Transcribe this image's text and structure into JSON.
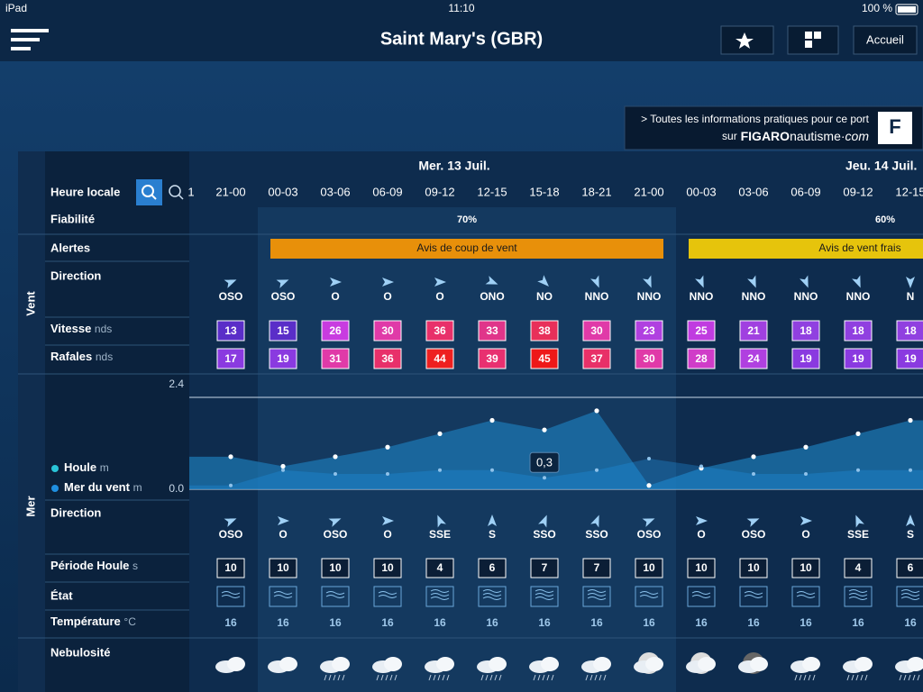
{
  "status_bar": {
    "device": "iPad",
    "time": "11:10",
    "battery": "100 %"
  },
  "header": {
    "title": "Saint Mary's (GBR)",
    "button": "Accueil"
  },
  "ad": {
    "line1": "> Toutes les informations pratiques pour ce port",
    "prefix": "sur",
    "brand": "FIGARO",
    "brand2": "nautisme",
    "brand3": "·com"
  },
  "days": [
    "Mer. 13 Juil.",
    "Jeu. 14 Juil."
  ],
  "labels": {
    "local_time": "Heure locale",
    "reliability": "Fiabilité",
    "alerts": "Alertes",
    "wind_group": "Vent",
    "wind_direction": "Direction",
    "speed": "Vitesse",
    "speed_unit": "nds",
    "gusts": "Rafales",
    "gusts_unit": "nds",
    "sea_group": "Mer",
    "swell": "Houle",
    "swell_unit": "m",
    "wind_sea": "Mer du vent",
    "wind_sea_unit": "m",
    "sea_direction": "Direction",
    "period": "Période Houle",
    "period_unit": "s",
    "state": "État",
    "temperature": "Température",
    "temperature_unit": "°C",
    "cloudiness": "Nebulosité"
  },
  "partial_time": "1",
  "times": [
    "21-00",
    "00-03",
    "03-06",
    "06-09",
    "09-12",
    "12-15",
    "15-18",
    "18-21",
    "21-00",
    "00-03",
    "03-06",
    "06-09",
    "09-12",
    "12-15"
  ],
  "reliability": [
    "70%",
    "60%"
  ],
  "alerts": [
    {
      "label": "Avis de coup de vent",
      "color": "#e8900a"
    },
    {
      "label": "Avis de vent frais",
      "color": "#e6c40c"
    }
  ],
  "wind": {
    "direction": [
      "OSO",
      "OSO",
      "O",
      "O",
      "O",
      "ONO",
      "NO",
      "NNO",
      "NNO",
      "NNO",
      "NNO",
      "NNO",
      "NNO",
      "N"
    ],
    "speed": {
      "values": [
        13,
        15,
        26,
        30,
        36,
        33,
        38,
        30,
        23,
        25,
        21,
        18,
        18,
        18
      ],
      "colors": [
        "#5a2ec8",
        "#5a2ec8",
        "#c83ce0",
        "#e03aa8",
        "#e8306a",
        "#e0358a",
        "#e8305a",
        "#e03aa8",
        "#b040e0",
        "#c03ce0",
        "#a040e0",
        "#9040e0",
        "#9040e0",
        "#9040e0"
      ]
    },
    "gusts": {
      "values": [
        17,
        19,
        31,
        36,
        44,
        39,
        45,
        37,
        30,
        28,
        24,
        19,
        19,
        19
      ],
      "colors": [
        "#8a3ae0",
        "#8a3ae0",
        "#e03aa8",
        "#e8306a",
        "#ee2020",
        "#e83070",
        "#ee1818",
        "#e83068",
        "#e03aa8",
        "#d03cc8",
        "#b040e0",
        "#8a3ae0",
        "#8a3ae0",
        "#8a3ae0"
      ]
    }
  },
  "chart_data": {
    "type": "area",
    "ylim": [
      0,
      2.4
    ],
    "yticks": [
      {
        "value": 0,
        "label": "0.0"
      },
      {
        "value": 2.4,
        "label": "2.4"
      }
    ],
    "series": [
      {
        "name": "Houle",
        "color": "#29c4d8",
        "values": [
          0.85,
          0.6,
          0.85,
          1.1,
          1.45,
          1.8,
          1.55,
          2.05,
          0.1,
          0.55,
          0.85,
          1.1,
          1.45,
          1.8
        ]
      },
      {
        "name": "Mer du vent",
        "color": "#1f8fe0",
        "values": [
          0.1,
          0.5,
          0.4,
          0.4,
          0.5,
          0.5,
          0.3,
          0.5,
          0.8,
          0.6,
          0.4,
          0.4,
          0.5,
          0.5
        ],
        "value_labels": [
          null,
          null,
          null,
          null,
          null,
          null,
          "0,3",
          null,
          null,
          null,
          null,
          null,
          null,
          null
        ]
      }
    ]
  },
  "sea": {
    "direction": [
      "OSO",
      "O",
      "OSO",
      "O",
      "SSE",
      "S",
      "SSO",
      "SSO",
      "OSO",
      "O",
      "OSO",
      "O",
      "SSE",
      "S"
    ],
    "period": [
      10,
      10,
      10,
      10,
      4,
      6,
      7,
      7,
      10,
      10,
      10,
      10,
      4,
      6
    ],
    "temperature": [
      16,
      16,
      16,
      16,
      16,
      16,
      16,
      16,
      16,
      16,
      16,
      16,
      16,
      16
    ]
  }
}
